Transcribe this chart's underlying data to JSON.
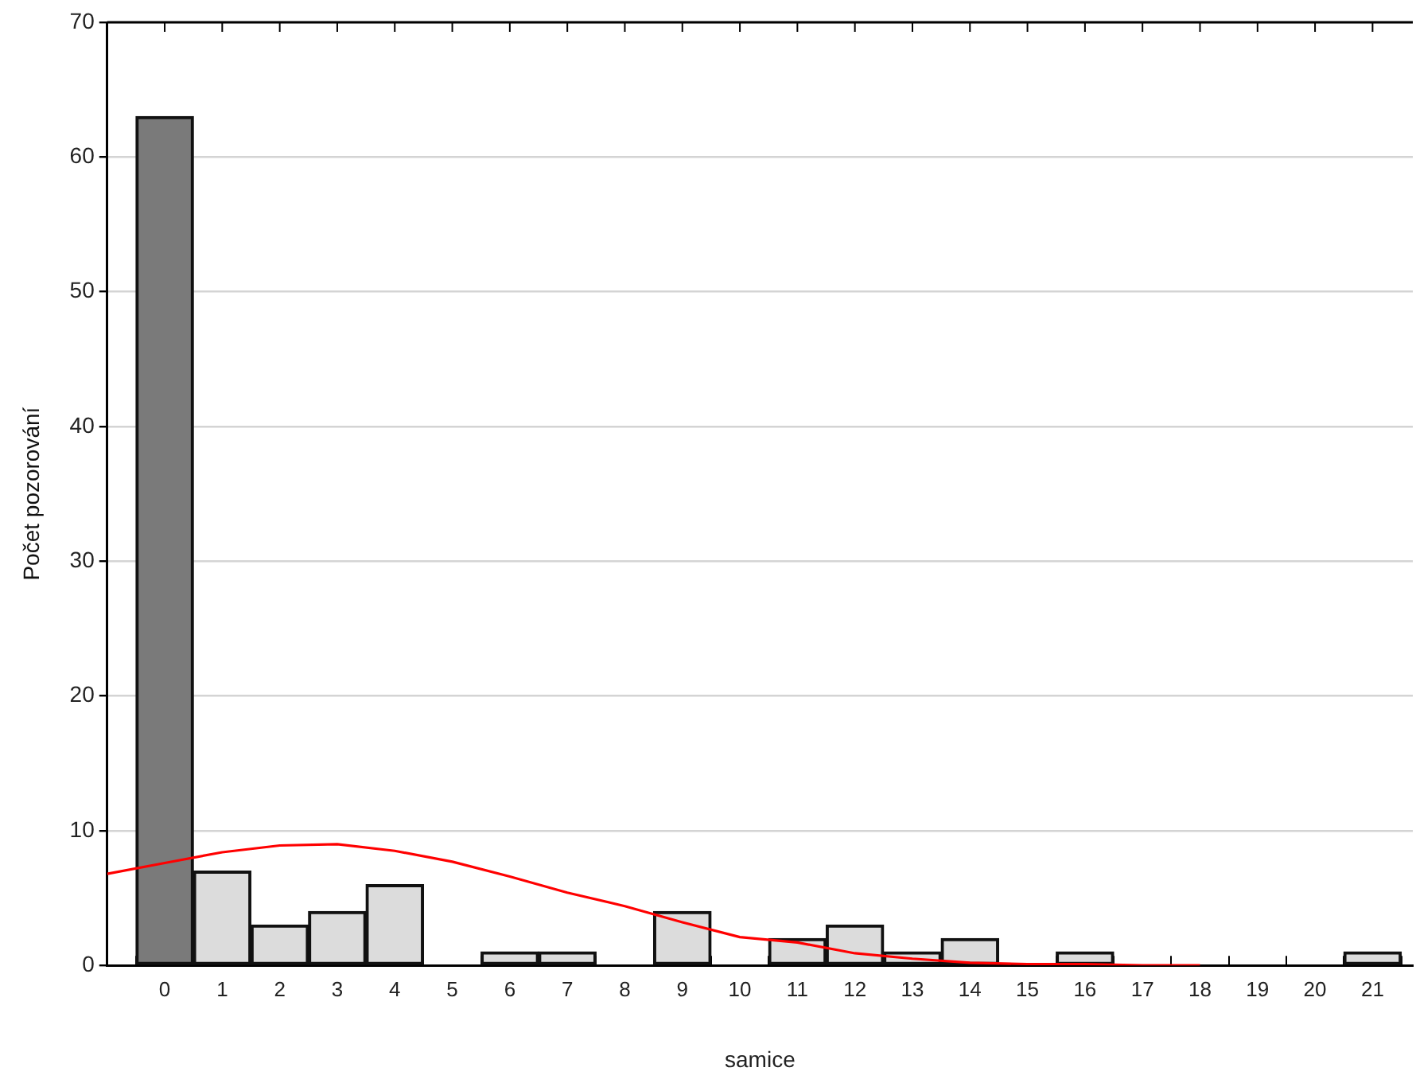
{
  "chart_data": {
    "type": "bar",
    "xlabel": "samice",
    "ylabel": "Počet pozorování",
    "x": [
      0,
      1,
      2,
      3,
      4,
      5,
      6,
      7,
      8,
      9,
      10,
      11,
      12,
      13,
      14,
      15,
      16,
      17,
      18,
      19,
      20,
      21
    ],
    "xlim": [
      -1,
      21.7
    ],
    "xticks": [
      0,
      1,
      2,
      3,
      4,
      5,
      6,
      7,
      8,
      9,
      10,
      11,
      12,
      13,
      14,
      15,
      16,
      17,
      18,
      19,
      20,
      21
    ],
    "ylim": [
      0,
      70
    ],
    "yticks": [
      0,
      10,
      20,
      30,
      40,
      50,
      60,
      70
    ],
    "grid": "y",
    "legend": false,
    "series": [
      {
        "colors": [
          "#7a7a7a",
          "#dcdcdc",
          "#dcdcdc",
          "#dcdcdc",
          "#dcdcdc",
          "#dcdcdc",
          "#dcdcdc",
          "#dcdcdc",
          "#dcdcdc",
          "#dcdcdc",
          "#dcdcdc",
          "#dcdcdc",
          "#dcdcdc",
          "#dcdcdc",
          "#dcdcdc",
          "#dcdcdc",
          "#dcdcdc",
          "#dcdcdc",
          "#dcdcdc",
          "#dcdcdc",
          "#dcdcdc",
          "#dcdcdc"
        ],
        "values": [
          63,
          7,
          3,
          4,
          6,
          0,
          1,
          1,
          0,
          4,
          0,
          2,
          3,
          1,
          2,
          0,
          1,
          0,
          0,
          0,
          0,
          1
        ]
      },
      {
        "type": "line",
        "color": "#ff0000",
        "marker": "none",
        "x": [
          -1,
          0,
          1,
          2,
          3,
          4,
          5,
          6,
          7,
          8,
          9,
          10,
          11,
          12,
          13,
          14,
          15,
          16,
          17,
          18
        ],
        "values": [
          6.8,
          7.6,
          8.4,
          8.9,
          9,
          8.5,
          7.7,
          6.6,
          5.4,
          4.4,
          3.2,
          2.1,
          1.7,
          0.9,
          0.5,
          0.2,
          0.1,
          0.1,
          0,
          0
        ]
      }
    ]
  }
}
